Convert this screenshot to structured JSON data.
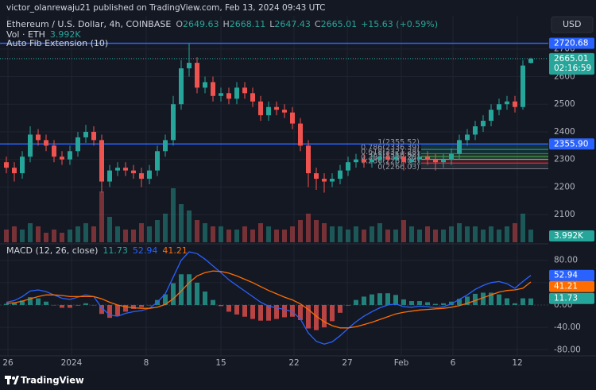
{
  "header": {
    "published": "victor_olanrewaju21 published on TradingView.com, Feb 13, 2024 09:43 UTC",
    "logo": "TradingView"
  },
  "chart_data": {
    "type": "candlestick",
    "title": "Ethereum / U.S. Dollar, 4h, COINBASE",
    "currency": "USD",
    "ohlc_labels": [
      "O",
      "H",
      "L",
      "C"
    ],
    "change": "+15.63 (+0.59%)",
    "volume_title": "Vol · ETH",
    "volume_label": "3.992K",
    "indicator": "Auto Fib Extension (10)",
    "countdown": "02:16:59",
    "up_color": "#26a69a",
    "down_color": "#ef5350",
    "open": [
      2290,
      2270,
      2250,
      2310,
      2390,
      2370,
      2350,
      2310,
      2300,
      2330,
      2380,
      2400,
      2370,
      2220,
      2260,
      2270,
      2260,
      2250,
      2230,
      2260,
      2330,
      2370,
      2500,
      2630,
      2650,
      2560,
      2580,
      2530,
      2540,
      2520,
      2560,
      2540,
      2510,
      2460,
      2490,
      2480,
      2470,
      2430,
      2350,
      2250,
      2230,
      2220,
      2230,
      2260,
      2290,
      2300,
      2290,
      2300,
      2310,
      2300,
      2310,
      2290,
      2300,
      2310,
      2300,
      2290,
      2300,
      2320,
      2370,
      2390,
      2420,
      2440,
      2480,
      2500,
      2510,
      2490,
      2649.63
    ],
    "high": [
      2310,
      2290,
      2330,
      2420,
      2410,
      2390,
      2370,
      2330,
      2350,
      2400,
      2425,
      2420,
      2390,
      2280,
      2290,
      2290,
      2280,
      2270,
      2280,
      2350,
      2390,
      2530,
      2660,
      2720,
      2670,
      2600,
      2600,
      2560,
      2560,
      2580,
      2580,
      2560,
      2530,
      2510,
      2510,
      2500,
      2490,
      2450,
      2370,
      2270,
      2250,
      2250,
      2280,
      2310,
      2320,
      2320,
      2320,
      2330,
      2330,
      2330,
      2330,
      2320,
      2330,
      2330,
      2320,
      2320,
      2340,
      2390,
      2410,
      2440,
      2460,
      2500,
      2520,
      2530,
      2530,
      2660,
      2668.11
    ],
    "low": [
      2250,
      2220,
      2230,
      2290,
      2350,
      2330,
      2290,
      2280,
      2280,
      2310,
      2360,
      2350,
      2180,
      2200,
      2240,
      2240,
      2230,
      2200,
      2210,
      2240,
      2310,
      2350,
      2480,
      2600,
      2540,
      2540,
      2510,
      2510,
      2500,
      2500,
      2520,
      2490,
      2440,
      2440,
      2460,
      2450,
      2410,
      2330,
      2200,
      2190,
      2180,
      2200,
      2210,
      2240,
      2270,
      2270,
      2270,
      2280,
      2280,
      2280,
      2260,
      2270,
      2280,
      2280,
      2260,
      2270,
      2280,
      2300,
      2350,
      2370,
      2400,
      2420,
      2460,
      2480,
      2470,
      2480,
      2647.43
    ],
    "close": [
      2270,
      2250,
      2310,
      2390,
      2370,
      2350,
      2310,
      2300,
      2330,
      2380,
      2400,
      2370,
      2220,
      2260,
      2270,
      2260,
      2250,
      2230,
      2260,
      2330,
      2370,
      2500,
      2630,
      2650,
      2560,
      2580,
      2530,
      2540,
      2520,
      2560,
      2540,
      2510,
      2460,
      2490,
      2480,
      2470,
      2430,
      2350,
      2250,
      2230,
      2220,
      2230,
      2260,
      2290,
      2300,
      2290,
      2300,
      2310,
      2300,
      2310,
      2290,
      2300,
      2310,
      2300,
      2290,
      2300,
      2320,
      2370,
      2390,
      2420,
      2440,
      2480,
      2500,
      2510,
      2490,
      2640,
      2665.01
    ],
    "volume": [
      4,
      5,
      4,
      6,
      5,
      3,
      4,
      3,
      4,
      5,
      6,
      5,
      16,
      8,
      5,
      4,
      4,
      6,
      5,
      7,
      9,
      17,
      12,
      10,
      7,
      6,
      5,
      5,
      4,
      4,
      5,
      4,
      6,
      5,
      4,
      4,
      5,
      7,
      9,
      7,
      6,
      5,
      5,
      4,
      5,
      4,
      5,
      6,
      4,
      4,
      7,
      5,
      4,
      5,
      4,
      4,
      5,
      6,
      5,
      5,
      4,
      5,
      4,
      5,
      6,
      9,
      3.992
    ],
    "volume_ylim": [
      0,
      20
    ],
    "ylim": [
      2000,
      2820
    ],
    "yticks": [
      2100,
      2200,
      2300,
      2400,
      2500,
      2600,
      2700
    ],
    "xlim": [
      -0.8,
      68.2
    ],
    "xticks": [
      {
        "value": 0.2,
        "label": "26"
      },
      {
        "value": 8.2,
        "label": "2024"
      },
      {
        "value": 17.6,
        "label": "8"
      },
      {
        "value": 27,
        "label": "15"
      },
      {
        "value": 36.2,
        "label": "22"
      },
      {
        "value": 42.9,
        "label": "27"
      },
      {
        "value": 49.7,
        "label": "Feb"
      },
      {
        "value": 56.2,
        "label": "6"
      },
      {
        "value": 64.3,
        "label": "12"
      }
    ],
    "grid": true,
    "levels": [
      {
        "value": 2720.68,
        "label": "2720.68",
        "color": "#2962ff"
      },
      {
        "value": 2355.9,
        "label": "2355.90",
        "color": "#2962ff"
      }
    ],
    "fib_start": 52.2,
    "fib_levels": [
      {
        "value": 2355.52,
        "label": "1(2355.52)",
        "color": "#787b86"
      },
      {
        "value": 2336.39,
        "label": "0.786(2336.39)",
        "color": "#26a69a"
      },
      {
        "value": 2321.28,
        "label": "0.618(2321.28)",
        "color": "#089981"
      },
      {
        "value": 2310.82,
        "label": "0.5(2310.82)",
        "color": "#4caf50"
      },
      {
        "value": 2300.28,
        "label": "0.382(2300.28)",
        "color": "#81c784"
      },
      {
        "value": 2287.04,
        "label": "0.236(2287.04)",
        "color": "#f23645"
      },
      {
        "value": 2266.03,
        "label": "0(2266.03)",
        "color": "#787b86"
      }
    ],
    "macd": {
      "title": "MACD (12, 26, close)",
      "ylim": [
        -91,
        108
      ],
      "yticks": [
        {
          "value": 80,
          "label": "80.00"
        },
        {
          "value": 40,
          "label": "40.00"
        },
        {
          "value": 0,
          "label": "0.00"
        },
        {
          "value": -40,
          "label": "-40.00"
        },
        {
          "value": -80,
          "label": "-80.00"
        }
      ],
      "series": [
        {
          "kind": "histogram",
          "color": "#26a69a",
          "negative_color": "#ef5350",
          "values": [
            2,
            4,
            8,
            14,
            12,
            6,
            0,
            -5,
            -5,
            -1,
            3,
            0,
            -16,
            -23,
            -20,
            -12,
            -7,
            -4,
            0,
            9,
            19,
            39,
            55,
            55,
            40,
            24,
            9,
            -2,
            -12,
            -17,
            -21,
            -25,
            -28,
            -28,
            -25,
            -22,
            -21,
            -27,
            -42,
            -45,
            -40,
            -29,
            -14,
            -1,
            9,
            15,
            19,
            21,
            21,
            18,
            10,
            7,
            7,
            5,
            2,
            3,
            6,
            11,
            15,
            20,
            22,
            22,
            19,
            12,
            3,
            12,
            11.73
          ]
        },
        {
          "kind": "line",
          "color": "#2962ff",
          "values": [
            5,
            8,
            15,
            25,
            27,
            24,
            18,
            12,
            10,
            14,
            18,
            15,
            -5,
            -18,
            -20,
            -15,
            -12,
            -10,
            -6,
            5,
            20,
            50,
            80,
            95,
            92,
            82,
            70,
            58,
            45,
            35,
            25,
            15,
            5,
            -2,
            -5,
            -8,
            -12,
            -25,
            -50,
            -65,
            -70,
            -66,
            -55,
            -42,
            -30,
            -20,
            -12,
            -5,
            0,
            2,
            -3,
            -4,
            -2,
            -3,
            -5,
            -3,
            2,
            10,
            18,
            28,
            35,
            40,
            42,
            38,
            30,
            42,
            52.94
          ]
        },
        {
          "kind": "line",
          "color": "#ff6d00",
          "values": [
            3,
            4,
            7,
            11,
            15,
            18,
            18,
            17,
            15,
            15,
            15,
            15,
            11,
            5,
            0,
            -3,
            -5,
            -6,
            -6,
            -4,
            1,
            11,
            25,
            40,
            52,
            58,
            61,
            60,
            57,
            52,
            46,
            40,
            33,
            26,
            20,
            14,
            9,
            2,
            -8,
            -20,
            -30,
            -37,
            -41,
            -41,
            -39,
            -35,
            -31,
            -26,
            -21,
            -16,
            -13,
            -11,
            -9,
            -8,
            -7,
            -6,
            -4,
            -1,
            3,
            8,
            13,
            18,
            23,
            26,
            27,
            30,
            41.21
          ]
        }
      ]
    }
  }
}
